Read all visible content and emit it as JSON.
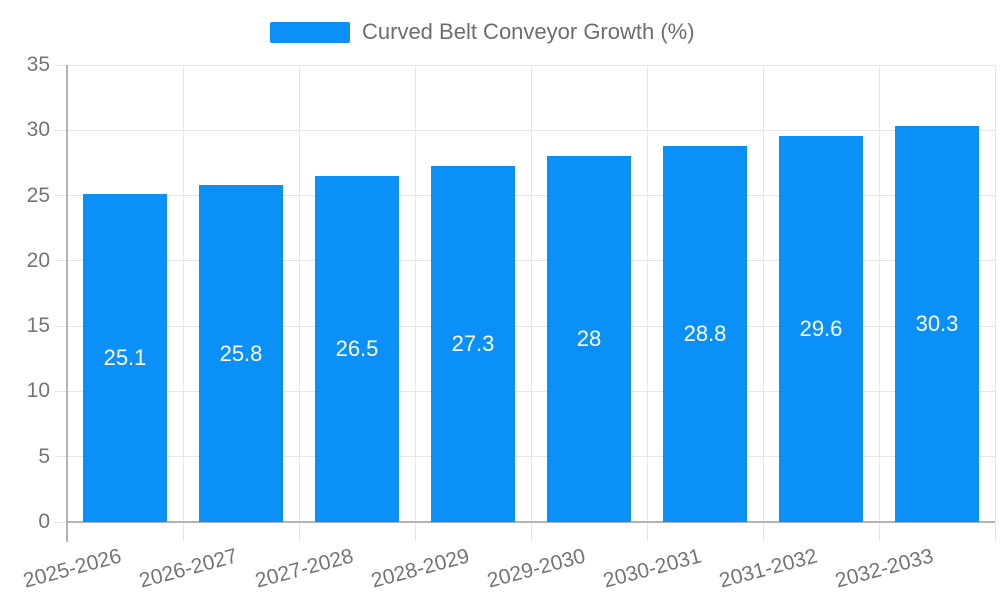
{
  "chart_data": {
    "type": "bar",
    "title": "",
    "legend": "Curved Belt Conveyor Growth (%)",
    "legend_position": "top",
    "categories": [
      "2025-2026",
      "2026-2027",
      "2027-2028",
      "2028-2029",
      "2029-2030",
      "2030-2031",
      "2031-2032",
      "2032-2033"
    ],
    "values": [
      25.1,
      25.8,
      26.5,
      27.3,
      28,
      28.8,
      29.6,
      30.3
    ],
    "xlabel": "",
    "ylabel": "",
    "ylim": [
      0,
      35
    ],
    "yticks": [
      0,
      5,
      10,
      15,
      20,
      25,
      30,
      35
    ],
    "grid": true,
    "colors": {
      "bar": "#0b90f8",
      "grid": "#e7e7e7",
      "axis": "#b3b3b3",
      "axis_text": "#757575",
      "legend_text": "#6e6e6e",
      "bar_label_text": "#ffffff",
      "background": "#ffffff"
    }
  }
}
